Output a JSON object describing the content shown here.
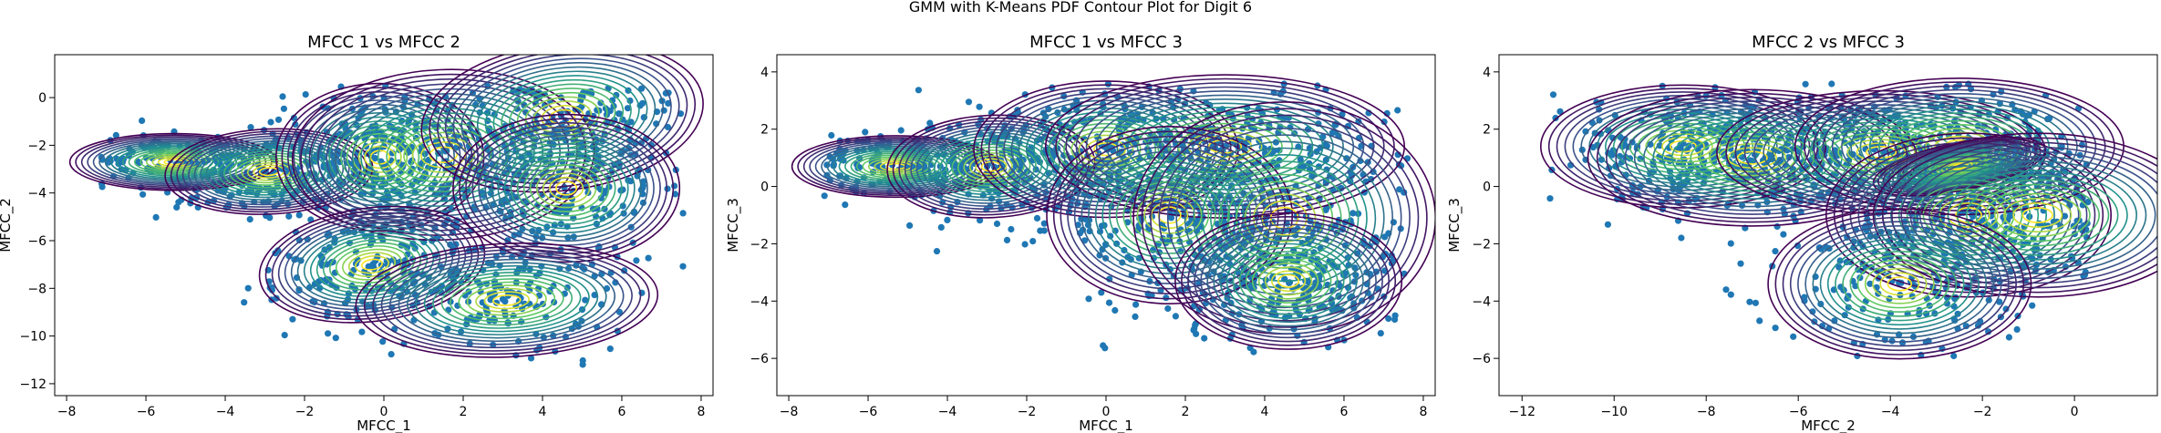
{
  "figure": {
    "suptitle": "GMM with K-Means PDF Contour Plot for Digit 6"
  },
  "style": {
    "point_color": "#1f77b4",
    "contour_cmap": [
      "#440154",
      "#3b528b",
      "#21918c",
      "#5ec962",
      "#fde725"
    ]
  },
  "chart_data": [
    {
      "type": "scatter",
      "title": "MFCC 1 vs MFCC 2",
      "xlabel": "MFCC_1",
      "ylabel": "MFCC_2",
      "xlim": [
        -8.3,
        8.3
      ],
      "ylim": [
        -12.5,
        1.8
      ],
      "xticks": [
        -8,
        -6,
        -4,
        -2,
        0,
        2,
        4,
        6,
        8
      ],
      "yticks": [
        -12,
        -10,
        -8,
        -6,
        -4,
        -2,
        0
      ],
      "point_cloud": {
        "x_range": [
          -7.2,
          7.6
        ],
        "y_range": [
          -11.4,
          0.5
        ]
      },
      "components": [
        {
          "center": [
            -5.3,
            -2.7
          ],
          "sx": 1.1,
          "sy": 0.5,
          "rho": 0.0
        },
        {
          "center": [
            -2.9,
            -3.1
          ],
          "sx": 1.1,
          "sy": 0.75,
          "rho": 0.1
        },
        {
          "center": [
            -0.1,
            -2.5
          ],
          "sx": 1.1,
          "sy": 1.3,
          "rho": 0.0
        },
        {
          "center": [
            1.5,
            -2.4
          ],
          "sx": 1.6,
          "sy": 1.5,
          "rho": 0.1
        },
        {
          "center": [
            4.5,
            -0.8
          ],
          "sx": 1.5,
          "sy": 1.3,
          "rho": 0.3
        },
        {
          "center": [
            4.6,
            -3.8
          ],
          "sx": 1.2,
          "sy": 1.3,
          "rho": 0.0
        },
        {
          "center": [
            -0.3,
            -7.0
          ],
          "sx": 1.2,
          "sy": 1.0,
          "rho": 0.3
        },
        {
          "center": [
            3.1,
            -8.5
          ],
          "sx": 1.6,
          "sy": 1.0,
          "rho": 0.1
        }
      ]
    },
    {
      "type": "scatter",
      "title": "MFCC 1 vs MFCC 3",
      "xlabel": "MFCC_1",
      "ylabel": "MFCC_3",
      "xlim": [
        -8.3,
        8.3
      ],
      "ylim": [
        -7.3,
        4.6
      ],
      "xticks": [
        -8,
        -6,
        -4,
        -2,
        0,
        2,
        4,
        6,
        8
      ],
      "yticks": [
        -6,
        -4,
        -2,
        0,
        2,
        4
      ],
      "point_cloud": {
        "x_range": [
          -7.2,
          7.6
        ],
        "y_range": [
          -6.1,
          3.6
        ]
      },
      "components": [
        {
          "center": [
            -5.3,
            0.7
          ],
          "sx": 1.1,
          "sy": 0.45,
          "rho": 0.0
        },
        {
          "center": [
            -2.9,
            0.7
          ],
          "sx": 1.1,
          "sy": 0.75,
          "rho": 0.1
        },
        {
          "center": [
            0.0,
            1.3
          ],
          "sx": 1.4,
          "sy": 1.0,
          "rho": 0.0
        },
        {
          "center": [
            3.0,
            1.4
          ],
          "sx": 1.9,
          "sy": 1.05,
          "rho": 0.0
        },
        {
          "center": [
            1.6,
            -1.0
          ],
          "sx": 1.3,
          "sy": 1.3,
          "rho": 0.0
        },
        {
          "center": [
            4.5,
            -1.1
          ],
          "sx": 1.6,
          "sy": 1.7,
          "rho": 0.0
        },
        {
          "center": [
            4.6,
            -3.3
          ],
          "sx": 1.2,
          "sy": 1.0,
          "rho": 0.0
        }
      ]
    },
    {
      "type": "scatter",
      "title": "MFCC 2 vs MFCC 3",
      "xlabel": "MFCC_2",
      "ylabel": "MFCC_3",
      "xlim": [
        -12.5,
        1.8
      ],
      "ylim": [
        -7.3,
        4.6
      ],
      "xticks": [
        -12,
        -10,
        -8,
        -6,
        -4,
        -2,
        0
      ],
      "yticks": [
        -6,
        -4,
        -2,
        0,
        2,
        4
      ],
      "point_cloud": {
        "x_range": [
          -11.4,
          0.3
        ],
        "y_range": [
          -6.1,
          3.6
        ]
      },
      "components": [
        {
          "center": [
            -8.5,
            1.4
          ],
          "sx": 1.3,
          "sy": 0.9,
          "rho": 0.0
        },
        {
          "center": [
            -7.0,
            1.0
          ],
          "sx": 1.5,
          "sy": 1.0,
          "rho": 0.0
        },
        {
          "center": [
            -4.2,
            1.2
          ],
          "sx": 1.5,
          "sy": 0.9,
          "rho": 0.0
        },
        {
          "center": [
            -2.5,
            1.4
          ],
          "sx": 1.5,
          "sy": 1.0,
          "rho": 0.0
        },
        {
          "center": [
            -2.5,
            0.7
          ],
          "sx": 0.8,
          "sy": 0.35,
          "rho": 0.5
        },
        {
          "center": [
            -2.3,
            -1.0
          ],
          "sx": 1.3,
          "sy": 1.2,
          "rho": 0.0
        },
        {
          "center": [
            -0.8,
            -1.0
          ],
          "sx": 1.5,
          "sy": 1.2,
          "rho": 0.0
        },
        {
          "center": [
            -3.8,
            -3.4
          ],
          "sx": 1.2,
          "sy": 1.1,
          "rho": 0.0
        }
      ]
    }
  ]
}
